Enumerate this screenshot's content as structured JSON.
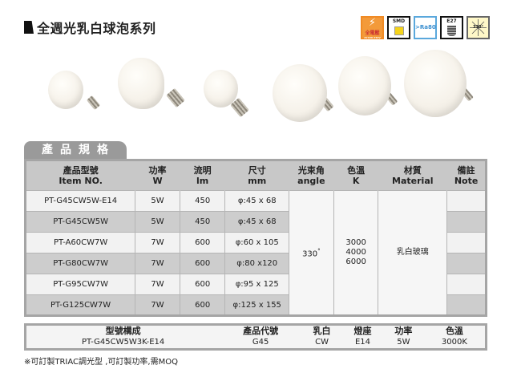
{
  "title": "全週光乳白球泡系列",
  "feature_icons": [
    {
      "name": "full-voltage-icon",
      "label": "全電壓",
      "sublabel": "AC100-240V",
      "color": "#f39a3a"
    },
    {
      "name": "smd-icon",
      "label": "SMD",
      "color": "#f5d31a"
    },
    {
      "name": "ra80-icon",
      "label": ">Ra80",
      "color": "#3a8fd0"
    },
    {
      "name": "e27-icon",
      "label": "E27"
    },
    {
      "name": "beam-330-icon",
      "label": "330°"
    }
  ],
  "section_tab": "產品規格",
  "spec_table": {
    "headers": [
      {
        "zh": "產品型號",
        "en": "Item NO."
      },
      {
        "zh": "功率",
        "en": "W"
      },
      {
        "zh": "流明",
        "en": "lm"
      },
      {
        "zh": "尺寸",
        "en": "mm"
      },
      {
        "zh": "光束角",
        "en": "angle"
      },
      {
        "zh": "色溫",
        "en": "K"
      },
      {
        "zh": "材質",
        "en": "Material"
      },
      {
        "zh": "備註",
        "en": "Note"
      }
    ],
    "rows": [
      {
        "item": "PT-G45CW5W-E14",
        "w": "5W",
        "lm": "450",
        "size": "φ:45 x 68",
        "note": ""
      },
      {
        "item": "PT-G45CW5W",
        "w": "5W",
        "lm": "450",
        "size": "φ:45 x 68",
        "note": ""
      },
      {
        "item": "PT-A60CW7W",
        "w": "7W",
        "lm": "600",
        "size": "φ:60 x 105",
        "note": ""
      },
      {
        "item": "PT-G80CW7W",
        "w": "7W",
        "lm": "600",
        "size": "φ:80 x120",
        "note": ""
      },
      {
        "item": "PT-G95CW7W",
        "w": "7W",
        "lm": "600",
        "size": "φ:95 x 125",
        "note": ""
      },
      {
        "item": "PT-G125CW7W",
        "w": "7W",
        "lm": "600",
        "size": "φ:125 x 155",
        "note": ""
      }
    ],
    "angle": "330",
    "angle_unit": "°",
    "cct": [
      "3000",
      "4000",
      "6000"
    ],
    "material": "乳白玻璃"
  },
  "composition": {
    "headers": [
      "型號構成",
      "產品代號",
      "乳白",
      "燈座",
      "功率",
      "色溫"
    ],
    "values": [
      "PT-G45CW5W3K-E14",
      "G45",
      "CW",
      "E14",
      "5W",
      "3000K"
    ]
  },
  "footnote": "※可訂製TRIAC調光型 ,可訂製功率,需MOQ"
}
